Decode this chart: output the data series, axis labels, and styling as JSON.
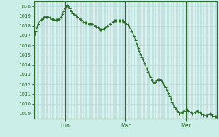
{
  "background_color": "#cceee8",
  "plot_bg_color": "#d8f0ee",
  "grid_color": "#b8ddd8",
  "line_color": "#2d6e2d",
  "marker_color": "#2d6e2d",
  "ylim": [
    1008.5,
    1020.5
  ],
  "yticks": [
    1009,
    1010,
    1011,
    1012,
    1013,
    1014,
    1015,
    1016,
    1017,
    1018,
    1019,
    1020
  ],
  "xtick_labels": [
    "Lun",
    "Mar",
    "Mer"
  ],
  "xtick_positions": [
    24,
    72,
    120
  ],
  "vline_positions": [
    24,
    72,
    120
  ],
  "values": [
    1017.2,
    1017.5,
    1017.9,
    1018.2,
    1018.5,
    1018.6,
    1018.7,
    1018.8,
    1018.9,
    1018.9,
    1018.9,
    1018.9,
    1018.8,
    1018.8,
    1018.7,
    1018.7,
    1018.6,
    1018.6,
    1018.6,
    1018.7,
    1018.8,
    1018.9,
    1019.2,
    1019.5,
    1019.8,
    1020.0,
    1020.1,
    1020.0,
    1019.8,
    1019.5,
    1019.3,
    1019.2,
    1019.1,
    1019.0,
    1018.9,
    1018.8,
    1018.7,
    1018.6,
    1018.5,
    1018.4,
    1018.3,
    1018.3,
    1018.3,
    1018.2,
    1018.2,
    1018.2,
    1018.2,
    1018.1,
    1018.0,
    1017.9,
    1017.8,
    1017.7,
    1017.6,
    1017.6,
    1017.6,
    1017.7,
    1017.8,
    1017.9,
    1018.0,
    1018.1,
    1018.2,
    1018.3,
    1018.4,
    1018.5,
    1018.5,
    1018.5,
    1018.5,
    1018.5,
    1018.5,
    1018.5,
    1018.5,
    1018.4,
    1018.3,
    1018.2,
    1018.1,
    1017.9,
    1017.7,
    1017.5,
    1017.2,
    1016.9,
    1016.5,
    1016.1,
    1015.7,
    1015.4,
    1015.1,
    1014.8,
    1014.5,
    1014.2,
    1013.9,
    1013.6,
    1013.3,
    1013.0,
    1012.7,
    1012.4,
    1012.2,
    1012.1,
    1012.2,
    1012.4,
    1012.5,
    1012.5,
    1012.4,
    1012.3,
    1012.1,
    1011.9,
    1011.7,
    1011.4,
    1011.1,
    1010.8,
    1010.5,
    1010.2,
    1009.9,
    1009.7,
    1009.5,
    1009.3,
    1009.1,
    1009.0,
    1009.0,
    1009.1,
    1009.2,
    1009.3,
    1009.4,
    1009.4,
    1009.3,
    1009.2,
    1009.1,
    1009.0,
    1009.0,
    1009.1,
    1009.2,
    1009.3,
    1009.2,
    1009.1,
    1009.0,
    1008.9,
    1008.8,
    1008.8,
    1008.8,
    1008.8,
    1008.9,
    1009.0,
    1008.9,
    1008.8,
    1008.7,
    1008.7,
    1008.7
  ]
}
